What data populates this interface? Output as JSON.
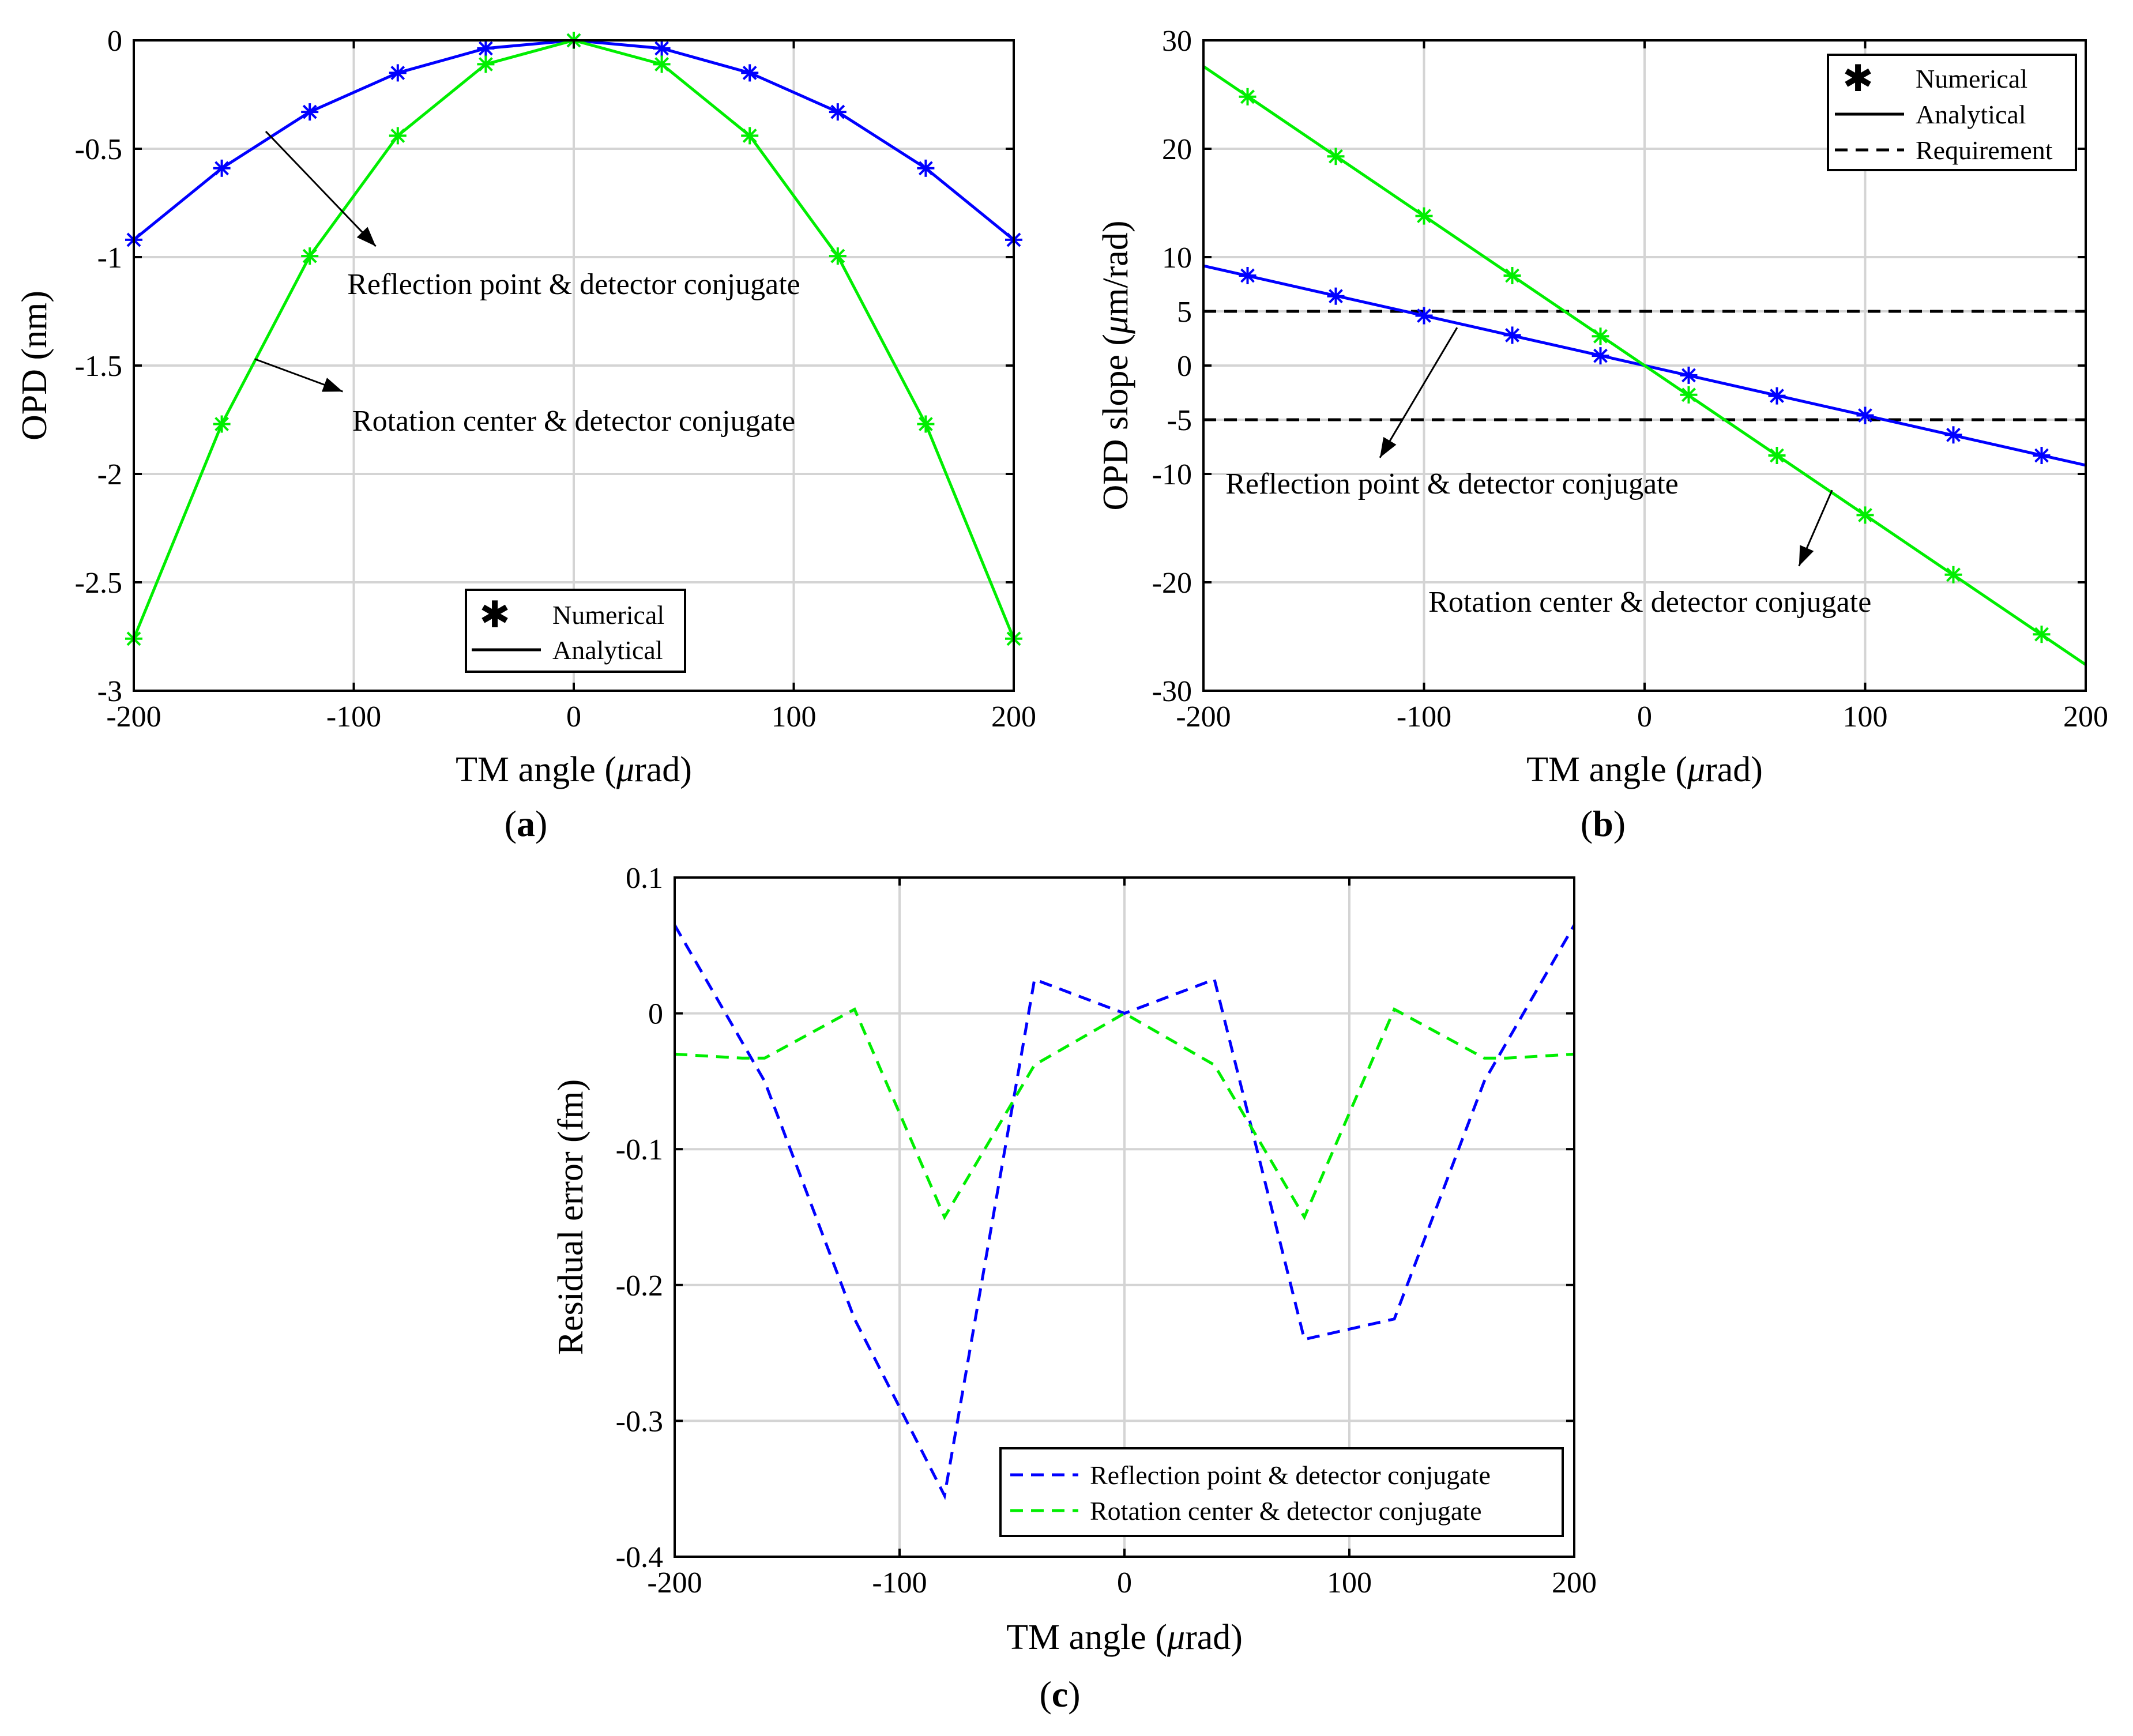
{
  "colors": {
    "blue": "#0000ff",
    "green": "#00ee00",
    "black": "#000000",
    "grid": "#d4d4d4"
  },
  "chart_data": [
    {
      "id": "a",
      "type": "line",
      "panel_label": "a",
      "xlabel_prefix": "TM angle (",
      "xlabel_mu": "μ",
      "xlabel_suffix": "rad)",
      "ylabel": "OPD (nm)",
      "xlim": [
        -200,
        200
      ],
      "ylim": [
        -3,
        0
      ],
      "xticks": [
        -200,
        -100,
        0,
        100,
        200
      ],
      "yticks": [
        0,
        -0.5,
        -1,
        -1.5,
        -2,
        -2.5,
        -3
      ],
      "xtick_labels": [
        "-200",
        "-100",
        "0",
        "100",
        "200"
      ],
      "ytick_labels": [
        "0",
        "-0.5",
        "-1",
        "-1.5",
        "-2",
        "-2.5",
        "-3"
      ],
      "grid": true,
      "legend_position": "bottom-center",
      "legend": [
        "Numerical",
        "Analytical"
      ],
      "series": [
        {
          "name": "Reflection point & detector conjugate",
          "color": "blue",
          "style": "solid-with-star-markers",
          "x": [
            -200,
            -160,
            -120,
            -80,
            -40,
            0,
            40,
            80,
            120,
            160,
            200
          ],
          "y": [
            -0.92,
            -0.59,
            -0.33,
            -0.15,
            -0.037,
            0,
            -0.037,
            -0.15,
            -0.33,
            -0.59,
            -0.92
          ]
        },
        {
          "name": "Rotation center & detector conjugate",
          "color": "green",
          "style": "solid-with-star-markers",
          "x": [
            -200,
            -160,
            -120,
            -80,
            -40,
            0,
            40,
            80,
            120,
            160,
            200
          ],
          "y": [
            -2.76,
            -1.77,
            -0.995,
            -0.44,
            -0.11,
            0,
            -0.11,
            -0.44,
            -0.995,
            -1.77,
            -2.76
          ]
        }
      ],
      "annotations": [
        {
          "text": "Reflection point & detector conjugate",
          "arrow_from": [
            -140,
            -0.42
          ],
          "arrow_to": [
            -90,
            -0.95
          ],
          "text_at": [
            0,
            -1.17
          ]
        },
        {
          "text": "Rotation center & detector conjugate",
          "arrow_from": [
            -145,
            -1.47
          ],
          "arrow_to": [
            -105,
            -1.62
          ],
          "text_at": [
            0,
            -1.8
          ]
        }
      ]
    },
    {
      "id": "b",
      "type": "line",
      "panel_label": "b",
      "xlabel_prefix": "TM angle (",
      "xlabel_mu": "μ",
      "xlabel_suffix": "rad)",
      "ylabel_prefix": "OPD slope (",
      "ylabel_mu": "μ",
      "ylabel_suffix": "m/rad)",
      "xlim": [
        -200,
        200
      ],
      "ylim": [
        -30,
        30
      ],
      "xticks": [
        -200,
        -100,
        0,
        100,
        200
      ],
      "yticks": [
        30,
        20,
        10,
        5,
        0,
        -5,
        -10,
        -20,
        -30
      ],
      "xtick_labels": [
        "-200",
        "-100",
        "0",
        "100",
        "200"
      ],
      "ytick_labels": [
        "30",
        "20",
        "10",
        "5",
        "0",
        "-5",
        "-10",
        "-20",
        "-30"
      ],
      "grid": true,
      "legend_position": "top-right",
      "legend": [
        "Numerical",
        "Analytical",
        "Requirement"
      ],
      "requirement": [
        5,
        -5
      ],
      "series": [
        {
          "name": "Reflection point & detector conjugate",
          "color": "blue",
          "style": "solid-with-star-markers",
          "line": [
            [
              -200,
              9.2
            ],
            [
              200,
              -9.2
            ]
          ],
          "x": [
            -180,
            -140,
            -100,
            -60,
            -20,
            20,
            60,
            100,
            140,
            180
          ],
          "y": [
            8.3,
            6.4,
            4.6,
            2.8,
            0.9,
            -0.9,
            -2.8,
            -4.6,
            -6.4,
            -8.3
          ]
        },
        {
          "name": "Rotation center & detector conjugate",
          "color": "green",
          "style": "solid-with-star-markers",
          "line": [
            [
              -200,
              27.6
            ],
            [
              200,
              -27.6
            ]
          ],
          "x": [
            -180,
            -140,
            -100,
            -60,
            -20,
            20,
            60,
            100,
            140,
            180
          ],
          "y": [
            24.8,
            19.3,
            13.8,
            8.3,
            2.7,
            -2.7,
            -8.3,
            -13.8,
            -19.3,
            -24.8
          ]
        }
      ],
      "annotations": [
        {
          "text": "Reflection point & detector conjugate",
          "arrow_from": [
            -85,
            3.5
          ],
          "arrow_to": [
            -120,
            -8.5
          ],
          "text_at": [
            -190,
            -11.8
          ]
        },
        {
          "text": "Rotation center & detector conjugate",
          "arrow_from": [
            85,
            -11.5
          ],
          "arrow_to": [
            70,
            -18.5
          ],
          "text_at": [
            -98,
            -22.7
          ]
        }
      ]
    },
    {
      "id": "c",
      "type": "line",
      "panel_label": "c",
      "xlabel_prefix": "TM angle (",
      "xlabel_mu": "μ",
      "xlabel_suffix": "rad)",
      "ylabel": "Residual error (fm)",
      "xlim": [
        -200,
        200
      ],
      "ylim": [
        -0.4,
        0.1
      ],
      "xticks": [
        -200,
        -100,
        0,
        100,
        200
      ],
      "yticks": [
        0.1,
        0,
        -0.1,
        -0.2,
        -0.3,
        -0.4
      ],
      "xtick_labels": [
        "-200",
        "-100",
        "0",
        "100",
        "200"
      ],
      "ytick_labels": [
        "0.1",
        "0",
        "-0.1",
        "-0.2",
        "-0.3",
        "-0.4"
      ],
      "grid": true,
      "legend_position": "bottom-right",
      "series": [
        {
          "name": "Reflection point & detector conjugate",
          "color": "blue",
          "style": "dashed",
          "x": [
            -200,
            -160,
            -120,
            -80,
            -40,
            0,
            40,
            80,
            120,
            160,
            200
          ],
          "y": [
            0.065,
            -0.05,
            -0.225,
            -0.355,
            0.025,
            0,
            0.025,
            -0.24,
            -0.225,
            -0.05,
            0.065
          ]
        },
        {
          "name": "Rotation center & detector conjugate",
          "color": "green",
          "style": "dashed",
          "x": [
            -200,
            -170,
            -160,
            -120,
            -80,
            -40,
            0,
            40,
            80,
            120,
            160,
            170,
            200
          ],
          "y": [
            -0.03,
            -0.033,
            -0.033,
            0.003,
            -0.15,
            -0.038,
            0,
            -0.038,
            -0.15,
            0.003,
            -0.033,
            -0.033,
            -0.03
          ]
        }
      ]
    }
  ]
}
